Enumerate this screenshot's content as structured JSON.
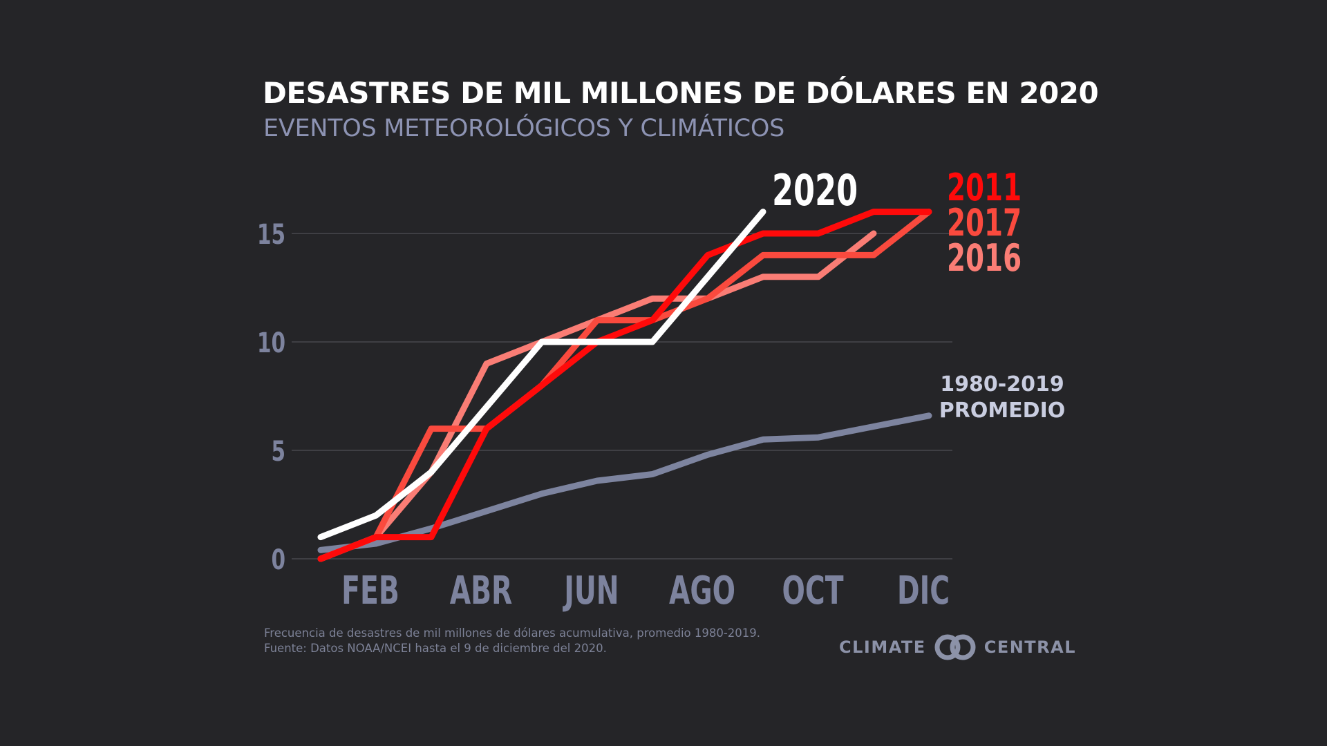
{
  "header": {
    "title": "DESASTRES DE MIL MILLONES DE DÓLARES EN 2020",
    "subtitle": "EVENTOS METEOROLÓGICOS Y CLIMÁTICOS"
  },
  "footnote": {
    "line1": "Frecuencia de desastres de mil millones de dólares acumulativa, promedio 1980-2019.",
    "line2": "Fuente: Datos NOAA/NCEI hasta el 9 de diciembre del 2020."
  },
  "brand": {
    "left": "CLIMATE",
    "right": "CENTRAL",
    "logo_icon": "interlocking-rings-icon"
  },
  "colors": {
    "background": "#252528",
    "grid": "#4f4f55",
    "axis_text": "#7d839e",
    "average": "#7d849f",
    "average_label": "#c9cde0"
  },
  "chart_data": {
    "type": "line",
    "title": "DESASTRES DE MIL MILLONES DE DÓLARES EN 2020",
    "subtitle": "EVENTOS METEOROLÓGICOS Y CLIMÁTICOS",
    "xlabel": "",
    "ylabel": "",
    "x_months": [
      1,
      2,
      3,
      4,
      5,
      6,
      7,
      8,
      9,
      10,
      11,
      12
    ],
    "xlim": [
      1,
      12
    ],
    "ylim": [
      0,
      17
    ],
    "x_ticks": [
      {
        "month": 2,
        "label": "FEB"
      },
      {
        "month": 4,
        "label": "ABR"
      },
      {
        "month": 6,
        "label": "JUN"
      },
      {
        "month": 8,
        "label": "AGO"
      },
      {
        "month": 10,
        "label": "OCT"
      },
      {
        "month": 12,
        "label": "DIC"
      }
    ],
    "y_ticks": [
      {
        "value": 0,
        "label": "0"
      },
      {
        "value": 5,
        "label": "5"
      },
      {
        "value": 10,
        "label": "10"
      },
      {
        "value": 15,
        "label": "15"
      }
    ],
    "grid": "horizontal",
    "series": [
      {
        "name": "1980-2019 PROMEDIO",
        "label_lines": [
          "1980-2019",
          "PROMEDIO"
        ],
        "color": "#7d849f",
        "values": [
          0.4,
          0.7,
          1.4,
          2.2,
          3.0,
          3.6,
          3.9,
          4.8,
          5.5,
          5.6,
          6.1,
          6.6
        ]
      },
      {
        "name": "2016",
        "color": "#fa7d75",
        "values": [
          0,
          1,
          4,
          9,
          10,
          11,
          12,
          12,
          13,
          13,
          15
        ]
      },
      {
        "name": "2017",
        "color": "#fa4a3e",
        "values": [
          0,
          1,
          6,
          6,
          8,
          11,
          11,
          12,
          14,
          14,
          14,
          16
        ]
      },
      {
        "name": "2011",
        "color": "#ff0a0a",
        "values": [
          0,
          1,
          1,
          6,
          8,
          10,
          11,
          14,
          15,
          15,
          16,
          16
        ]
      },
      {
        "name": "2020",
        "color": "#ffffff",
        "values": [
          1,
          2,
          4,
          7,
          10,
          10,
          10,
          13,
          16
        ]
      }
    ]
  }
}
